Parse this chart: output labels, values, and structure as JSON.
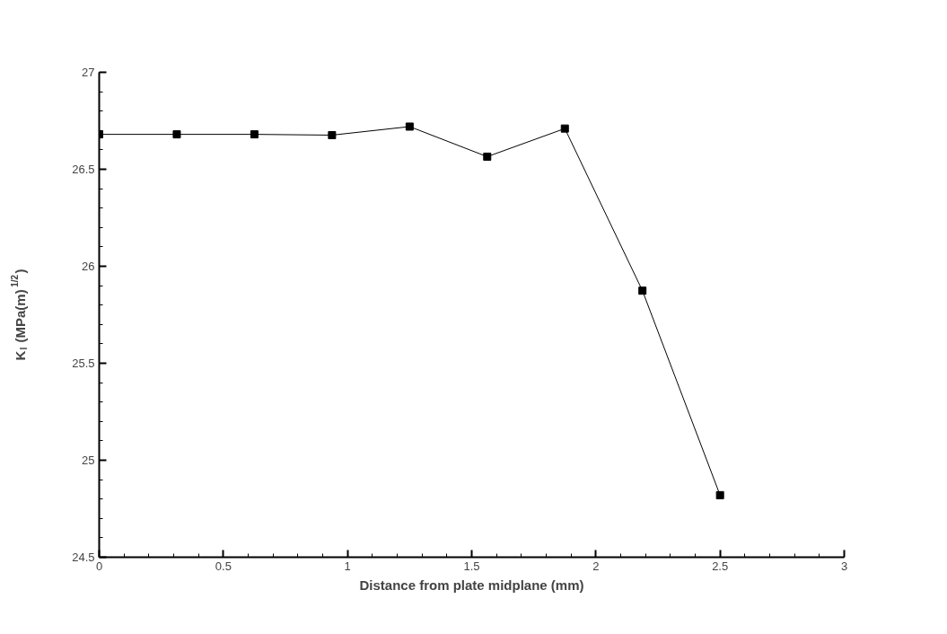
{
  "chart_data": {
    "type": "line",
    "xlabel": "Distance from plate midplane (mm)",
    "ylabel": "K$_{I}$ (MPa(m)$^{1/2}$)",
    "x": [
      0,
      0.3125,
      0.625,
      0.9375,
      1.25,
      1.5625,
      1.875,
      2.1875,
      2.5
    ],
    "series": [
      {
        "color": "#000000",
        "values": [
          26.68,
          26.68,
          26.68,
          26.676,
          26.72,
          26.565,
          26.71,
          25.874,
          24.82
        ]
      }
    ],
    "xlim": [
      0,
      3
    ],
    "xticks": [
      0,
      0.5,
      1,
      1.5,
      2,
      2.5,
      3
    ],
    "ylim": [
      24.5,
      27
    ],
    "yticks": [
      24.5,
      25,
      25.5,
      26,
      26.5,
      27
    ],
    "grid": false,
    "marker": "square",
    "line_style": "solid"
  }
}
